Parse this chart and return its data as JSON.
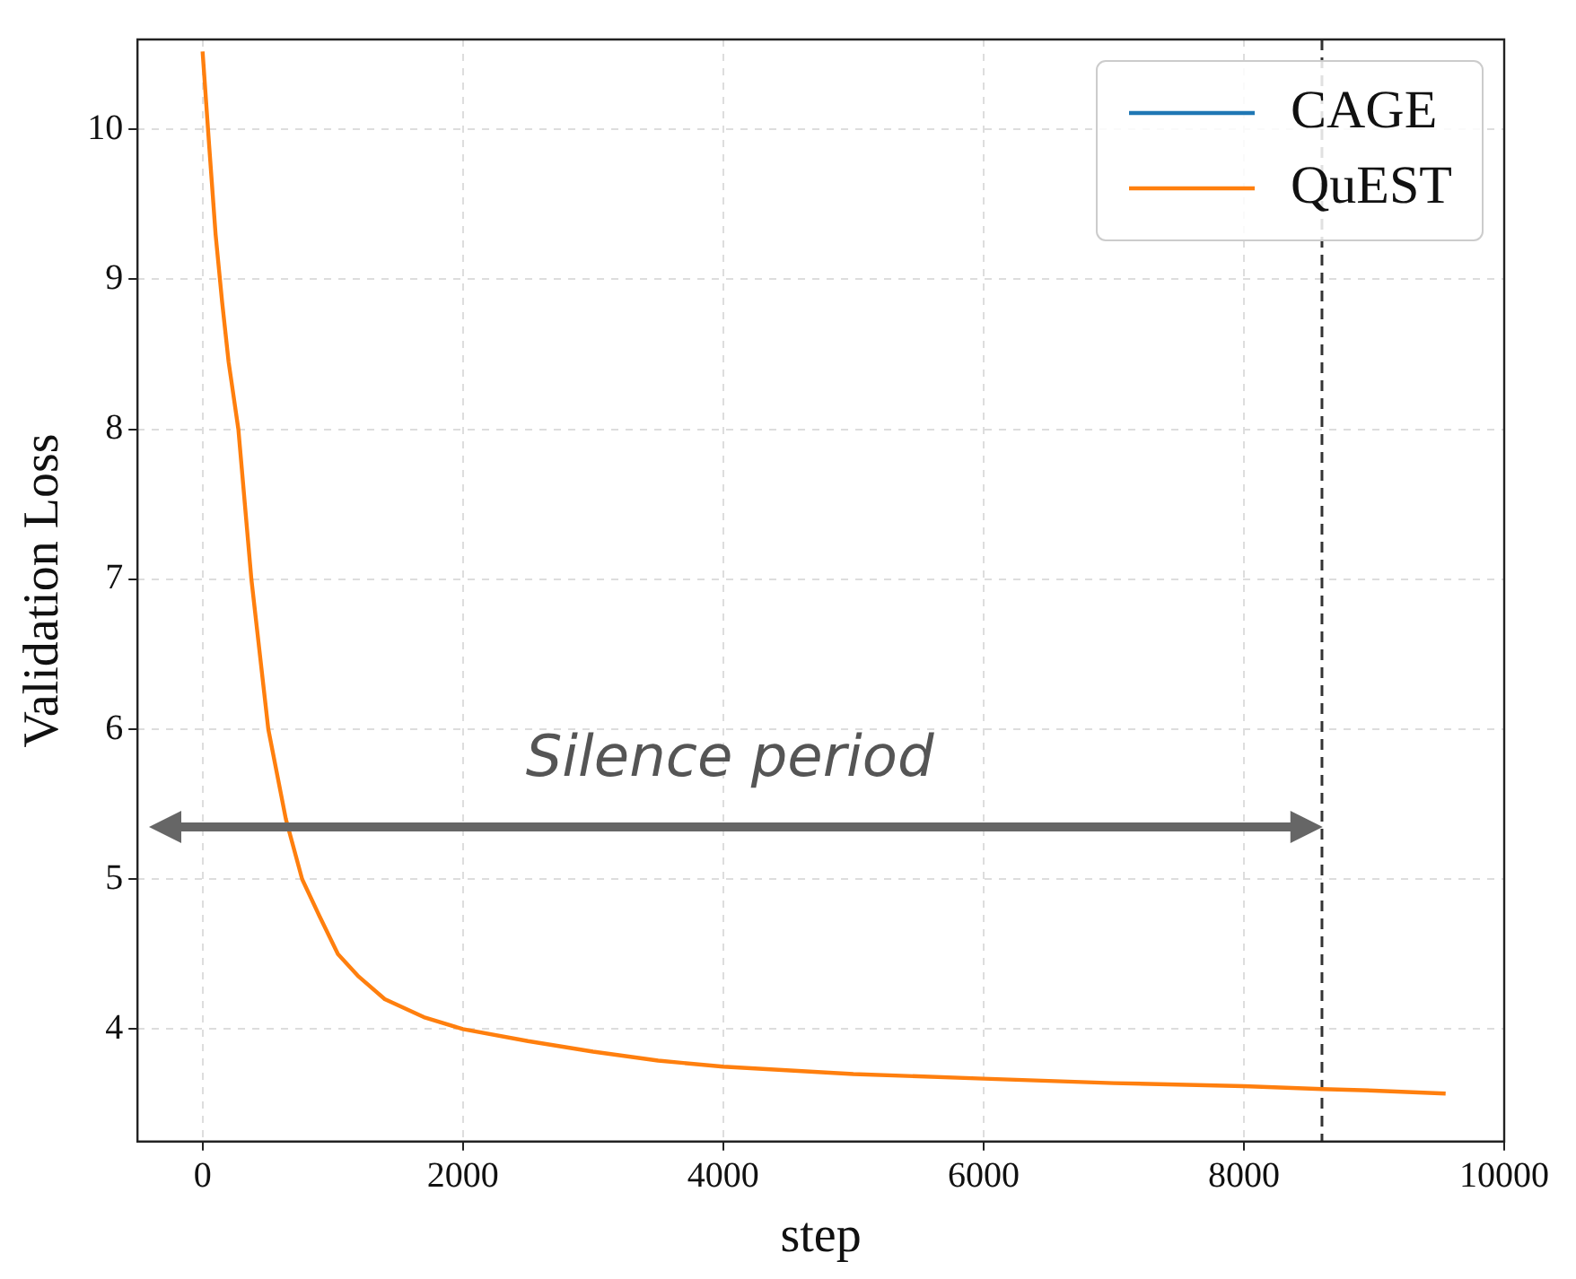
{
  "chart_data": {
    "type": "line",
    "xlabel": "step",
    "ylabel": "Validation Loss",
    "x": [
      0,
      50,
      100,
      150,
      200,
      275,
      375,
      505,
      640,
      765,
      900,
      1040,
      1200,
      1400,
      1700,
      2000,
      2500,
      3000,
      3500,
      4000,
      5000,
      6000,
      7000,
      8000,
      8600,
      9000,
      9550
    ],
    "series": [
      {
        "name": "CAGE",
        "color": "#1f77b4",
        "values": [
          null,
          null,
          null,
          null,
          null,
          null,
          null,
          null,
          null,
          null,
          null,
          null,
          null,
          null,
          null,
          null,
          null,
          null,
          null,
          null,
          null,
          null,
          null,
          null,
          null,
          null,
          null
        ]
      },
      {
        "name": "QuEST",
        "color": "#ff7f0e",
        "values": [
          10.52,
          9.9,
          9.3,
          8.85,
          8.45,
          8.0,
          7.0,
          6.0,
          5.4,
          5.0,
          4.75,
          4.5,
          4.35,
          4.2,
          4.08,
          4.0,
          3.92,
          3.85,
          3.79,
          3.75,
          3.7,
          3.67,
          3.64,
          3.62,
          3.6,
          3.59,
          3.57
        ]
      }
    ],
    "xlim": [
      -500,
      10000
    ],
    "xticks": [
      0,
      2000,
      4000,
      6000,
      8000,
      10000
    ],
    "ylim": [
      3.25,
      10.6
    ],
    "yticks": [
      4,
      5,
      6,
      7,
      8,
      9,
      10
    ],
    "grid": true,
    "legend": "top right",
    "line_style": "solid",
    "marker": "none",
    "ref_lines": [
      {
        "axis": "x",
        "value": 8600,
        "line_style": "dashed",
        "color": "#333333"
      }
    ],
    "annotations": [
      "Silence period"
    ]
  }
}
